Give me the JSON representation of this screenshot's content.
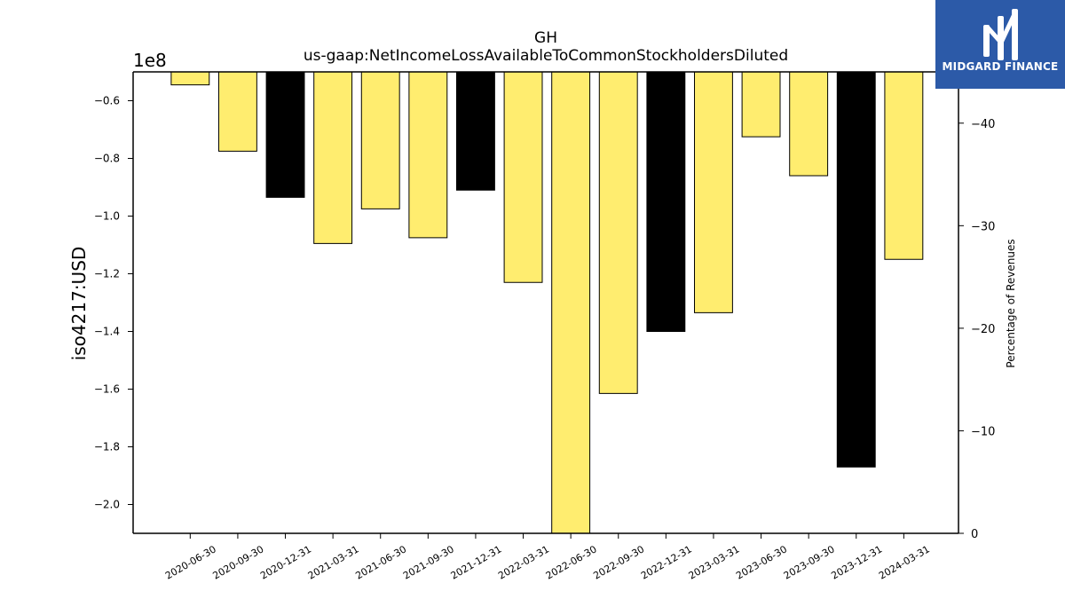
{
  "chart_data": {
    "type": "bar",
    "title": "GH",
    "subtitle": "us-gaap:NetIncomeLossAvailableToCommonStockholdersDiluted",
    "ylabel": "iso4217:USD",
    "y_offset_label": "1e8",
    "y2label": "Percentage of Revenues",
    "ylim": [
      -2.1,
      -0.5
    ],
    "y2lim": [
      0,
      45
    ],
    "y_ticks": [
      -0.6,
      -0.8,
      -1.0,
      -1.2,
      -1.4,
      -1.6,
      -1.8,
      -2.0
    ],
    "y_tick_labels": [
      "−0.6",
      "−0.8",
      "−1.0",
      "−1.2",
      "−1.4",
      "−1.6",
      "−1.8",
      "−2.0"
    ],
    "y2_ticks": [
      0,
      10,
      20,
      30,
      40
    ],
    "y2_tick_labels": [
      "0",
      "−10",
      "−20",
      "−30",
      "−40"
    ],
    "categories": [
      "2020-06-30",
      "2020-09-30",
      "2020-12-31",
      "2021-03-31",
      "2021-06-30",
      "2021-09-30",
      "2021-12-31",
      "2022-03-31",
      "2022-06-30",
      "2022-09-30",
      "2022-12-31",
      "2023-03-31",
      "2023-06-30",
      "2023-09-30",
      "2023-12-31",
      "2024-03-31"
    ],
    "values": [
      -0.545,
      -0.775,
      -0.935,
      -1.095,
      -0.975,
      -1.075,
      -0.91,
      -1.23,
      -2.1,
      -1.615,
      -1.4,
      -1.335,
      -0.725,
      -0.86,
      -1.87,
      -1.15
    ],
    "bar_colors": [
      "#ffed6f",
      "#ffed6f",
      "#000000",
      "#ffed6f",
      "#ffed6f",
      "#ffed6f",
      "#000000",
      "#ffed6f",
      "#ffed6f",
      "#ffed6f",
      "#000000",
      "#ffed6f",
      "#ffed6f",
      "#ffed6f",
      "#000000",
      "#ffed6f"
    ],
    "grid": false
  },
  "logo": {
    "text": "MIDGARD FINANCE",
    "background": "#2c5aa8"
  }
}
